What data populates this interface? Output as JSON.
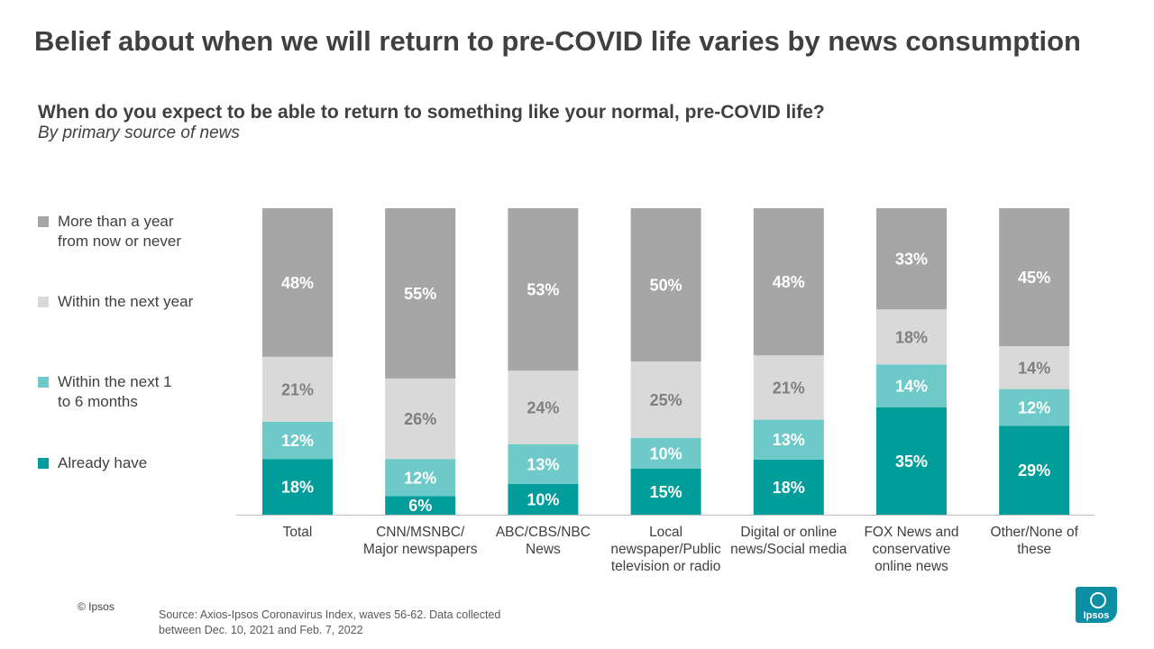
{
  "title": "Belief about when we will return to pre-COVID life varies by news consumption",
  "question": "When do you expect to be able to return to something like your normal, pre-COVID life?",
  "subquestion": "By primary source of news",
  "legend": [
    {
      "label": "More than  a year\nfrom now or never",
      "color": "#a6a6a6"
    },
    {
      "label": "Within the next year",
      "color": "#d9d9d9"
    },
    {
      "label": "Within the next 1\n to 6 months",
      "color": "#6ecac8"
    },
    {
      "label": "Already have",
      "color": "#009d9a"
    }
  ],
  "chart_data": {
    "type": "bar",
    "stacked": true,
    "orientation": "vertical",
    "ylim": [
      0,
      100
    ],
    "categories": [
      "Total",
      "CNN/MSNBC/\nMajor newspapers",
      "ABC/CBS/NBC\nNews",
      "Local\nnewspaper/Public\ntelevision or radio",
      "Digital or online\nnews/Social media",
      "FOX News and\nconservative\nonline news",
      "Other/None of\nthese"
    ],
    "series": [
      {
        "name": "Already have",
        "color": "#009d9a",
        "label_color": "#ffffff",
        "values": [
          18,
          6,
          10,
          15,
          18,
          35,
          29
        ]
      },
      {
        "name": "Within the next 1 to 6 months",
        "color": "#6ecac8",
        "label_color": "#ffffff",
        "values": [
          12,
          12,
          13,
          10,
          13,
          14,
          12
        ]
      },
      {
        "name": "Within the next year",
        "color": "#d9d9d9",
        "label_color": "#7f7f7f",
        "values": [
          21,
          26,
          24,
          25,
          21,
          18,
          14
        ]
      },
      {
        "name": "More than a year from now or never",
        "color": "#a6a6a6",
        "label_color": "#ffffff",
        "values": [
          48,
          55,
          53,
          50,
          48,
          33,
          45
        ]
      }
    ],
    "data_labels": [
      [
        "18%",
        "6%",
        "10%",
        "15%",
        "18%",
        "35%",
        "29%"
      ],
      [
        "12%",
        "12%",
        "13%",
        "10%",
        "13%",
        "14%",
        "12%"
      ],
      [
        "21%",
        "26%",
        "24%",
        "25%",
        "21%",
        "18%",
        "14%"
      ],
      [
        "48%",
        "55%",
        "53%",
        "50%",
        "48%",
        "33%",
        "45%"
      ]
    ]
  },
  "copyright": "© Ipsos",
  "source": "Source: Axios-Ipsos Coronavirus Index, waves 56-62. Data collected between Dec. 10, 2021 and Feb. 7, 2022",
  "logo_text": "Ipsos"
}
